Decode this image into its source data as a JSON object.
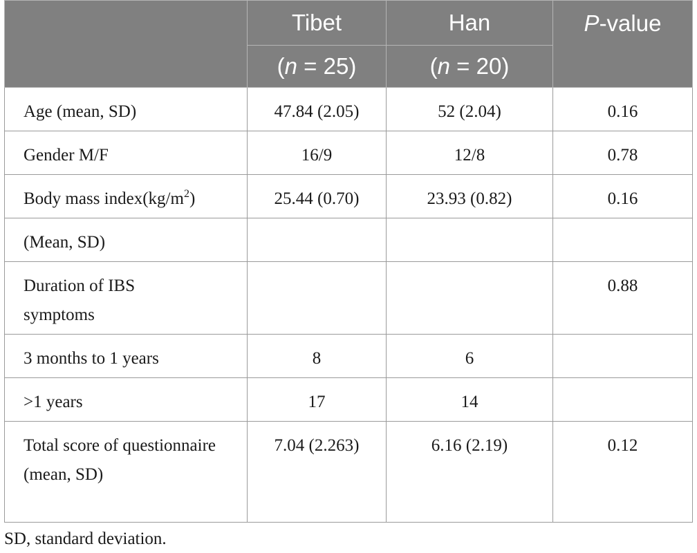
{
  "table": {
    "headers": {
      "tibet": "Tibet",
      "tibet_n": "(n = 25)",
      "tibet_n_open": "(",
      "tibet_n_var": "n",
      "tibet_n_rest": " = 25)",
      "han": "Han",
      "han_n_open": "(",
      "han_n_var": "n",
      "han_n_rest": " = 20)",
      "pvalue_var": "P",
      "pvalue_rest": "-value"
    },
    "rows": [
      {
        "label": "Age (mean, SD)",
        "tibet": "47.84 (2.05)",
        "han": "52 (2.04)",
        "p": "0.16"
      },
      {
        "label": "Gender M/F",
        "tibet": "16/9",
        "han": "12/8",
        "p": "0.78"
      },
      {
        "label": "Body mass index(kg/m",
        "label_sup": "2",
        "label_after": ")",
        "tibet": "25.44 (0.70)",
        "han": "23.93 (0.82)",
        "p": "0.16"
      },
      {
        "label": "(Mean, SD)",
        "tibet": "",
        "han": "",
        "p": ""
      },
      {
        "label": "Duration of IBS symptoms",
        "tibet": "",
        "han": "",
        "p": "0.88"
      },
      {
        "label": "3 months to 1 years",
        "tibet": "8",
        "han": "6",
        "p": ""
      },
      {
        "label": ">1 years",
        "tibet": "17",
        "han": "14",
        "p": ""
      },
      {
        "label": "Total score of questionnaire (mean, SD)",
        "tibet": "7.04 (2.263)",
        "han": "6.16 (2.19)",
        "p": "0.12"
      }
    ]
  },
  "footnote": "SD, standard deviation."
}
